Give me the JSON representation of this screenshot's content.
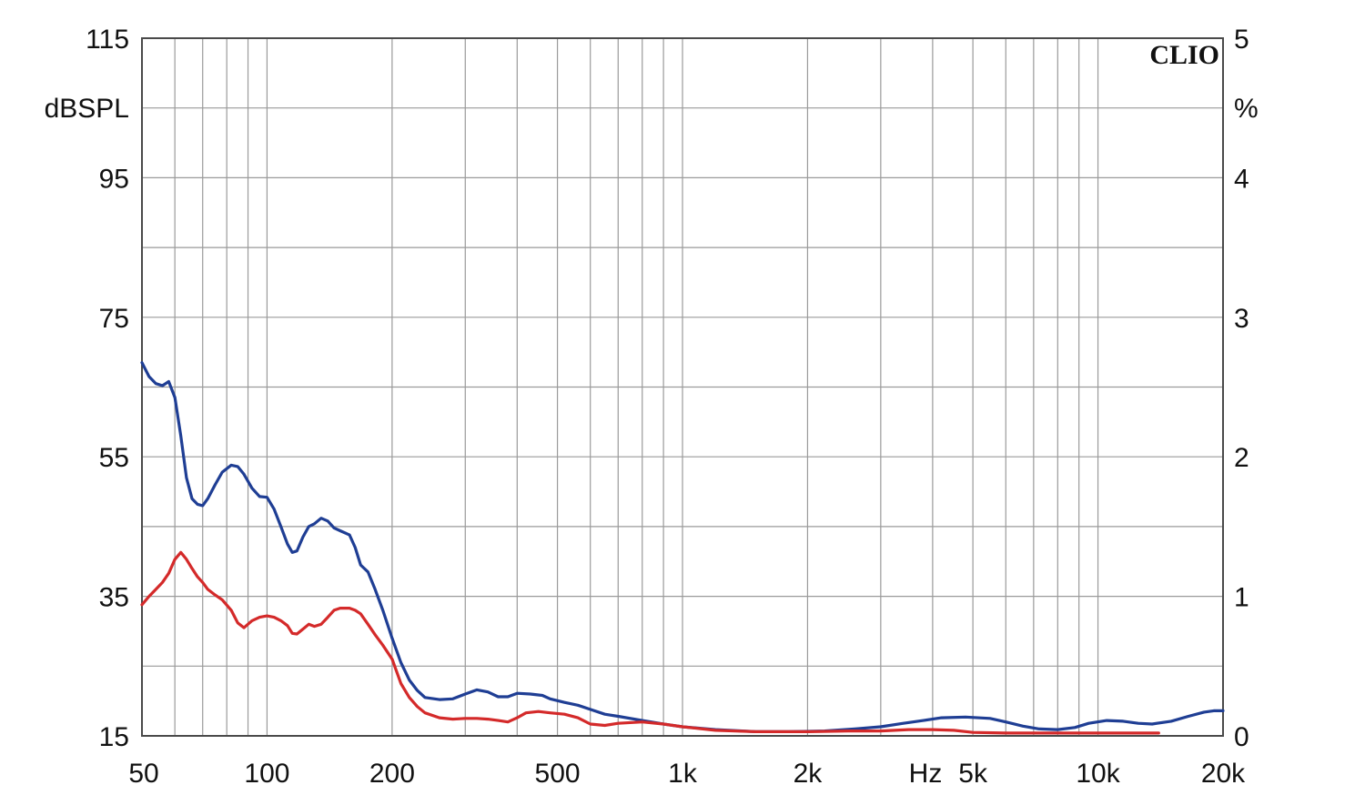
{
  "brand": "CLIO",
  "chart_data": {
    "type": "line",
    "x_scale": "log",
    "xlim": [
      50,
      20000
    ],
    "ylim_left": [
      15,
      115
    ],
    "ylim_right": [
      0,
      5
    ],
    "ylabel_left": "dBSPL",
    "ylabel_right": "%",
    "x_unit_label": "Hz",
    "grid": true,
    "x_ticks": [
      {
        "value": 50,
        "label": "50"
      },
      {
        "value": 100,
        "label": "100"
      },
      {
        "value": 200,
        "label": "200"
      },
      {
        "value": 500,
        "label": "500"
      },
      {
        "value": 1000,
        "label": "1k"
      },
      {
        "value": 2000,
        "label": "2k"
      },
      {
        "value": 5000,
        "label": "5k"
      },
      {
        "value": 10000,
        "label": "10k"
      },
      {
        "value": 20000,
        "label": "20k"
      }
    ],
    "y_ticks_left": [
      {
        "value": 115,
        "label": "115"
      },
      {
        "value": 95,
        "label": "95"
      },
      {
        "value": 75,
        "label": "75"
      },
      {
        "value": 55,
        "label": "55"
      },
      {
        "value": 35,
        "label": "35"
      },
      {
        "value": 15,
        "label": "15"
      }
    ],
    "y_ticks_right": [
      {
        "value": 5,
        "label": "5"
      },
      {
        "value": 4,
        "label": "4"
      },
      {
        "value": 3,
        "label": "3"
      },
      {
        "value": 2,
        "label": "2"
      },
      {
        "value": 1,
        "label": "1"
      },
      {
        "value": 0,
        "label": "0"
      }
    ],
    "series": [
      {
        "color": "#1f3e94",
        "points": [
          [
            50,
            68.5
          ],
          [
            52,
            66.5
          ],
          [
            54,
            65.5
          ],
          [
            56,
            65.2
          ],
          [
            58,
            65.8
          ],
          [
            60,
            63.5
          ],
          [
            62,
            58
          ],
          [
            64,
            52
          ],
          [
            66,
            49
          ],
          [
            68,
            48.2
          ],
          [
            70,
            48
          ],
          [
            72,
            49
          ],
          [
            75,
            51
          ],
          [
            78,
            52.8
          ],
          [
            82,
            53.8
          ],
          [
            85,
            53.6
          ],
          [
            88,
            52.5
          ],
          [
            92,
            50.5
          ],
          [
            96,
            49.3
          ],
          [
            100,
            49.2
          ],
          [
            104,
            47.5
          ],
          [
            108,
            45
          ],
          [
            112,
            42.5
          ],
          [
            115,
            41.3
          ],
          [
            118,
            41.5
          ],
          [
            122,
            43.5
          ],
          [
            126,
            45
          ],
          [
            130,
            45.4
          ],
          [
            135,
            46.2
          ],
          [
            140,
            45.8
          ],
          [
            145,
            44.8
          ],
          [
            150,
            44.4
          ],
          [
            158,
            43.8
          ],
          [
            163,
            42
          ],
          [
            168,
            39.5
          ],
          [
            175,
            38.5
          ],
          [
            182,
            36
          ],
          [
            190,
            33
          ],
          [
            200,
            29
          ],
          [
            210,
            25.5
          ],
          [
            220,
            23
          ],
          [
            230,
            21.5
          ],
          [
            240,
            20.5
          ],
          [
            260,
            20.2
          ],
          [
            280,
            20.3
          ],
          [
            300,
            21
          ],
          [
            320,
            21.6
          ],
          [
            340,
            21.3
          ],
          [
            360,
            20.6
          ],
          [
            380,
            20.6
          ],
          [
            400,
            21.1
          ],
          [
            430,
            21
          ],
          [
            460,
            20.8
          ],
          [
            480,
            20.3
          ],
          [
            520,
            19.8
          ],
          [
            560,
            19.4
          ],
          [
            600,
            18.8
          ],
          [
            650,
            18.1
          ],
          [
            700,
            17.8
          ],
          [
            800,
            17.2
          ],
          [
            900,
            16.7
          ],
          [
            1000,
            16.3
          ],
          [
            1200,
            15.9
          ],
          [
            1500,
            15.6
          ],
          [
            1800,
            15.6
          ],
          [
            2200,
            15.7
          ],
          [
            2600,
            16
          ],
          [
            3000,
            16.3
          ],
          [
            3400,
            16.8
          ],
          [
            3800,
            17.2
          ],
          [
            4200,
            17.6
          ],
          [
            4800,
            17.7
          ],
          [
            5500,
            17.5
          ],
          [
            6000,
            17
          ],
          [
            6600,
            16.4
          ],
          [
            7200,
            16
          ],
          [
            8000,
            15.9
          ],
          [
            8800,
            16.2
          ],
          [
            9500,
            16.8
          ],
          [
            10500,
            17.2
          ],
          [
            11500,
            17.1
          ],
          [
            12500,
            16.8
          ],
          [
            13500,
            16.7
          ],
          [
            15000,
            17.1
          ],
          [
            16500,
            17.8
          ],
          [
            18000,
            18.4
          ],
          [
            19000,
            18.6
          ],
          [
            20000,
            18.6
          ]
        ]
      },
      {
        "color": "#d42a2a",
        "points": [
          [
            50,
            33.8
          ],
          [
            52,
            35
          ],
          [
            54,
            36
          ],
          [
            56,
            37
          ],
          [
            58,
            38.3
          ],
          [
            60,
            40.3
          ],
          [
            62,
            41.3
          ],
          [
            64,
            40.3
          ],
          [
            66,
            39
          ],
          [
            68,
            37.8
          ],
          [
            70,
            37
          ],
          [
            72,
            36
          ],
          [
            75,
            35.2
          ],
          [
            78,
            34.5
          ],
          [
            82,
            33
          ],
          [
            85,
            31.2
          ],
          [
            88,
            30.5
          ],
          [
            92,
            31.5
          ],
          [
            96,
            32
          ],
          [
            100,
            32.2
          ],
          [
            104,
            32
          ],
          [
            108,
            31.5
          ],
          [
            112,
            30.8
          ],
          [
            115,
            29.7
          ],
          [
            118,
            29.6
          ],
          [
            122,
            30.3
          ],
          [
            126,
            31
          ],
          [
            130,
            30.7
          ],
          [
            135,
            31
          ],
          [
            140,
            32
          ],
          [
            145,
            33
          ],
          [
            150,
            33.3
          ],
          [
            158,
            33.3
          ],
          [
            163,
            33
          ],
          [
            168,
            32.5
          ],
          [
            175,
            31
          ],
          [
            182,
            29.5
          ],
          [
            190,
            28
          ],
          [
            200,
            26
          ],
          [
            210,
            22.5
          ],
          [
            220,
            20.5
          ],
          [
            230,
            19.2
          ],
          [
            240,
            18.3
          ],
          [
            260,
            17.6
          ],
          [
            280,
            17.4
          ],
          [
            300,
            17.5
          ],
          [
            320,
            17.5
          ],
          [
            340,
            17.4
          ],
          [
            360,
            17.2
          ],
          [
            380,
            17
          ],
          [
            400,
            17.6
          ],
          [
            420,
            18.3
          ],
          [
            450,
            18.5
          ],
          [
            480,
            18.3
          ],
          [
            520,
            18.1
          ],
          [
            560,
            17.6
          ],
          [
            600,
            16.7
          ],
          [
            650,
            16.5
          ],
          [
            700,
            16.8
          ],
          [
            800,
            17
          ],
          [
            900,
            16.7
          ],
          [
            1000,
            16.3
          ],
          [
            1200,
            15.8
          ],
          [
            1500,
            15.6
          ],
          [
            2000,
            15.6
          ],
          [
            2500,
            15.7
          ],
          [
            3000,
            15.7
          ],
          [
            3500,
            15.9
          ],
          [
            4000,
            15.9
          ],
          [
            4500,
            15.8
          ],
          [
            5000,
            15.5
          ],
          [
            6000,
            15.4
          ],
          [
            8000,
            15.4
          ],
          [
            10000,
            15.4
          ],
          [
            12000,
            15.4
          ],
          [
            14000,
            15.4
          ]
        ]
      }
    ]
  }
}
